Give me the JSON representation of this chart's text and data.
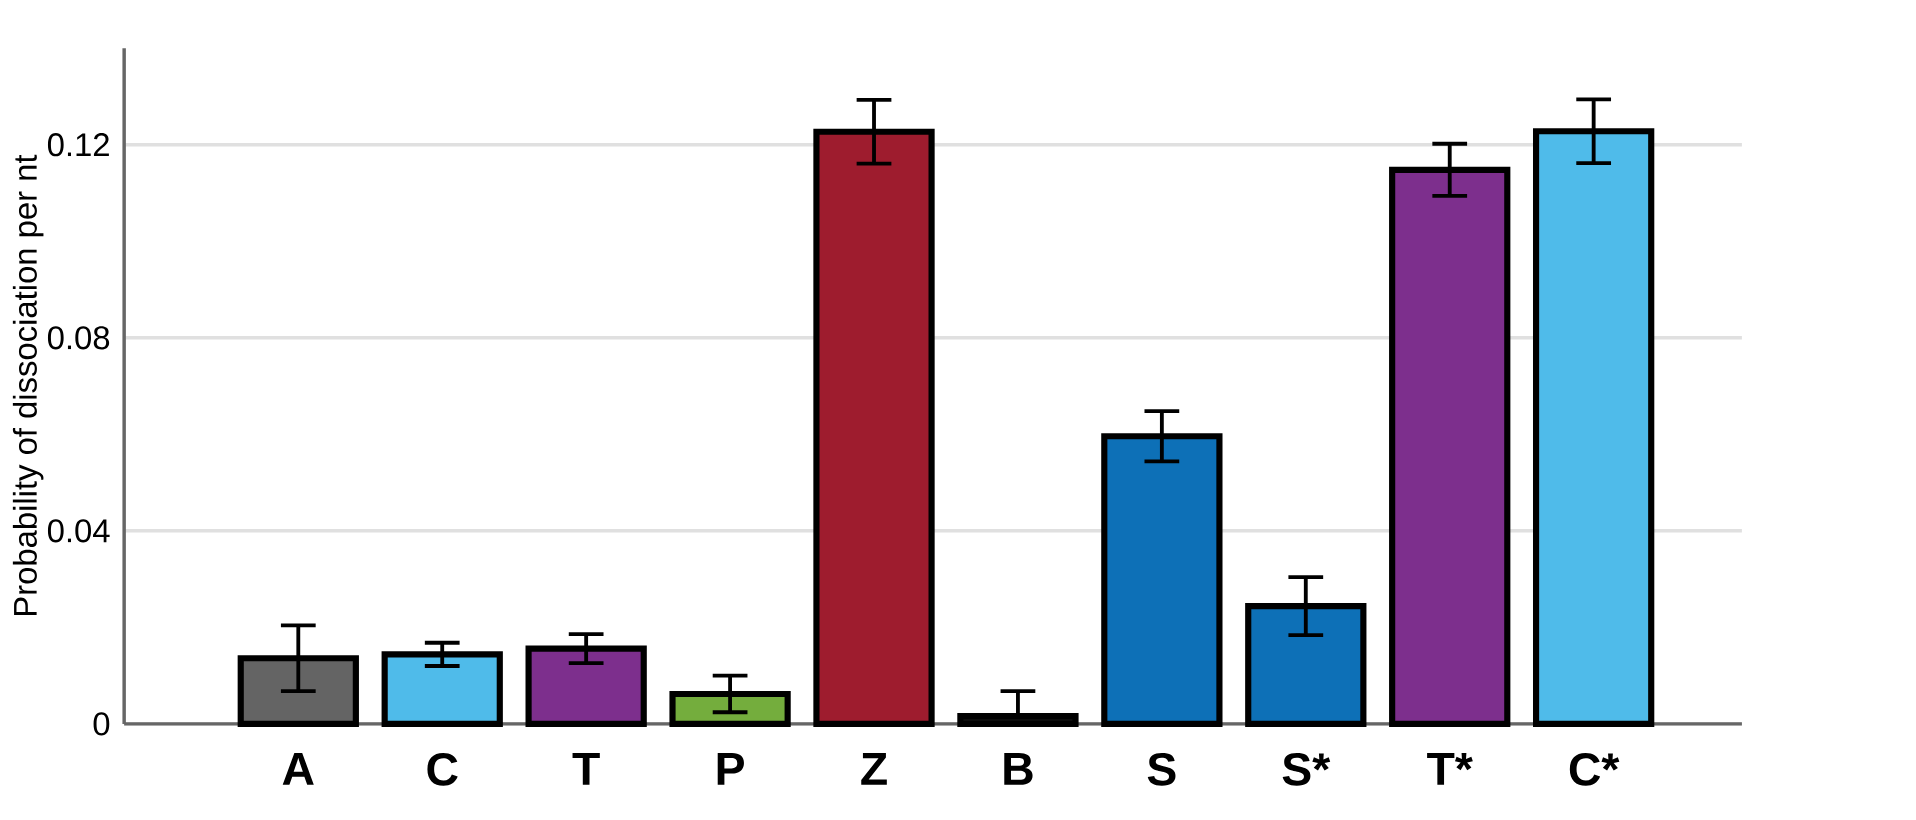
{
  "chart_data": {
    "type": "bar",
    "ylabel": "Probability of dissociation per nt",
    "categories": [
      "A",
      "C",
      "T",
      "P",
      "Z",
      "B",
      "S",
      "S*",
      "T*",
      "C*"
    ],
    "values": [
      0.0136,
      0.0144,
      0.0156,
      0.0062,
      0.1227,
      0.0016,
      0.0596,
      0.0244,
      0.1148,
      0.1228
    ],
    "errors": [
      0.0068,
      0.0024,
      0.003,
      0.0038,
      0.0066,
      [
        0.0016,
        0.0068
      ],
      0.0052,
      0.006,
      0.0054,
      0.0066
    ],
    "colors": [
      "#646464",
      "#4fbbea",
      "#7d2f8d",
      "#74ad3d",
      "#9e1c2e",
      "#111111",
      "#0d70b7",
      "#0d70b7",
      "#7d2f8d",
      "#4fbbea"
    ],
    "ylim": [
      0,
      0.14
    ],
    "yticks": [
      0,
      {
        "value": 0.04,
        "label": "0.04"
      },
      {
        "value": 0.08,
        "label": "0.08"
      },
      {
        "value": 0.12,
        "label": "0.12"
      }
    ],
    "grid": "y"
  }
}
